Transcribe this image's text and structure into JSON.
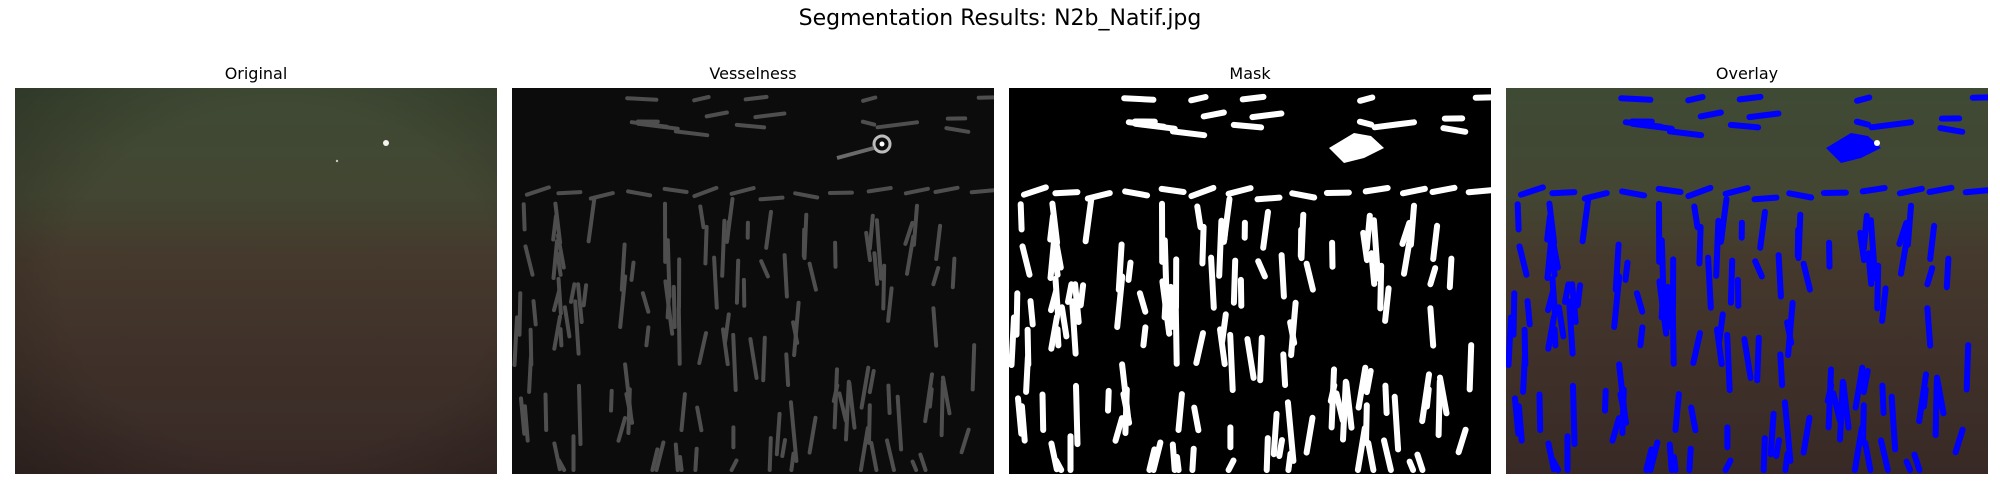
{
  "figure": {
    "title": "Segmentation Results: N2b_Natif.jpg"
  },
  "panels": [
    {
      "title": "Original"
    },
    {
      "title": "Vesselness"
    },
    {
      "title": "Mask"
    },
    {
      "title": "Overlay"
    }
  ],
  "colors": {
    "original_top": "#3f4a34",
    "original_bottom": "#3b2b27",
    "vesselness_bg": "#0c0c0c",
    "mask_bg": "#000000",
    "mask_fg": "#ffffff",
    "overlay_fg": "#0000ff"
  }
}
